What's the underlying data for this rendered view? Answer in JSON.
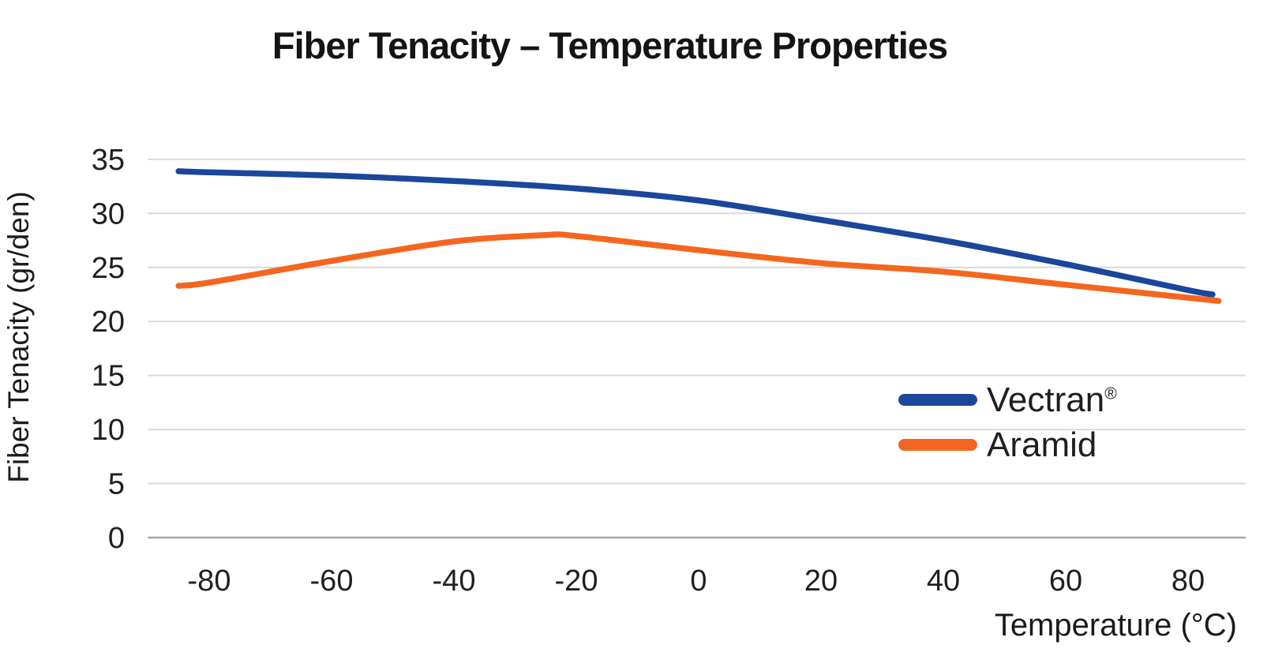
{
  "chart_data": {
    "type": "line",
    "title": "Fiber Tenacity – Temperature Properties",
    "xlabel": "Temperature (°C)",
    "ylabel": "Fiber Tenacity (gr/den)",
    "xlim": [
      -90,
      90
    ],
    "ylim": [
      0,
      35
    ],
    "x_ticks": [
      -80,
      -60,
      -40,
      -20,
      0,
      20,
      40,
      60,
      80
    ],
    "y_ticks": [
      0,
      5,
      10,
      15,
      20,
      25,
      30,
      35
    ],
    "grid": "horizontal-only",
    "gridline_color": "#d9d9d9",
    "zeroline_color": "#a6a6a6",
    "legend_position": "center-right",
    "series": [
      {
        "name": "Vectran",
        "suffix": "®",
        "color": "#1a469b",
        "points": [
          [
            -85,
            33.9
          ],
          [
            -80,
            33.8
          ],
          [
            -60,
            33.5
          ],
          [
            -40,
            33.0
          ],
          [
            -20,
            32.3
          ],
          [
            0,
            31.2
          ],
          [
            20,
            29.4
          ],
          [
            40,
            27.5
          ],
          [
            60,
            25.3
          ],
          [
            80,
            22.9
          ],
          [
            84,
            22.5
          ]
        ]
      },
      {
        "name": "Aramid",
        "suffix": "",
        "color": "#f4661f",
        "points": [
          [
            -85,
            23.3
          ],
          [
            -80,
            23.6
          ],
          [
            -60,
            25.6
          ],
          [
            -40,
            27.4
          ],
          [
            -25,
            28.0
          ],
          [
            -20,
            27.9
          ],
          [
            0,
            26.6
          ],
          [
            20,
            25.4
          ],
          [
            40,
            24.6
          ],
          [
            60,
            23.4
          ],
          [
            80,
            22.2
          ],
          [
            85,
            21.9
          ]
        ]
      }
    ]
  }
}
